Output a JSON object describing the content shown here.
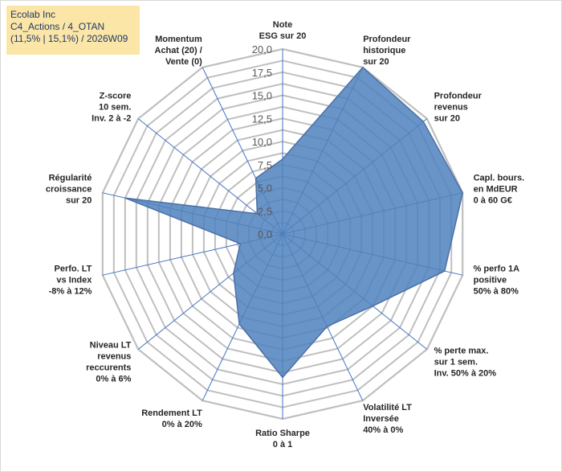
{
  "title_box": {
    "line1": "Ecolab Inc",
    "line2": "C4_Actions / 4_OTAN",
    "line3": "(11,5% | 15,1%) / 2026W09"
  },
  "colors": {
    "fill": "#4f81bd",
    "fill_opacity": "0.85",
    "stroke": "#4a6fa5",
    "grid": "#bfbfbf",
    "spoke": "#4472c4",
    "title_bg": "#fbe6a8"
  },
  "chart_data": {
    "type": "radar",
    "rmin": 0,
    "rmax": 20,
    "ticks": [
      "0,0",
      "2,5",
      "5,0",
      "7,5",
      "10,0",
      "12,5",
      "15,0",
      "17,5",
      "20,0"
    ],
    "tick_values": [
      0,
      2.5,
      5,
      7.5,
      10,
      12.5,
      15,
      17.5,
      20
    ],
    "axes": [
      {
        "lines": [
          "Note",
          "ESG sur 20"
        ],
        "value": 8.1
      },
      {
        "lines": [
          "Profondeur",
          "historique",
          "sur 20"
        ],
        "value": 20
      },
      {
        "lines": [
          "Profondeur",
          "revenus",
          "sur 20"
        ],
        "value": 19.5
      },
      {
        "lines": [
          "Capl. bours.",
          "en MdEUR",
          "0 à 60 G€"
        ],
        "value": 20
      },
      {
        "lines": [
          "% perfo 1A",
          "positive",
          "50% à 80%"
        ],
        "value": 18
      },
      {
        "lines": [
          "% perte max.",
          "sur 1 sem.",
          "Inv. 50% à 20%"
        ],
        "value": 12.5
      },
      {
        "lines": [
          "Volatilité LT",
          "Inversée",
          "40% à 0%"
        ],
        "value": 11.1
      },
      {
        "lines": [
          "Ratio Sharpe",
          "0 à 1"
        ],
        "value": 15.5
      },
      {
        "lines": [
          "Rendement LT",
          "0% à 20%"
        ],
        "value": 10.8
      },
      {
        "lines": [
          "Niveau LT",
          "revenus",
          "reccurents",
          "0% à 6%"
        ],
        "value": 6.8
      },
      {
        "lines": [
          "Perfo. LT",
          "vs Index",
          "-8% à 12%"
        ],
        "value": 4.7
      },
      {
        "lines": [
          "Régularité",
          "croissance",
          "sur 20"
        ],
        "value": 17.5
      },
      {
        "lines": [
          "Z-score",
          "10 sem.",
          "Inv. 2 à -2"
        ],
        "value": 3.5
      },
      {
        "lines": [
          "Momentum",
          "Achat (20) /",
          "Vente (0)"
        ],
        "value": 6.7
      }
    ]
  }
}
